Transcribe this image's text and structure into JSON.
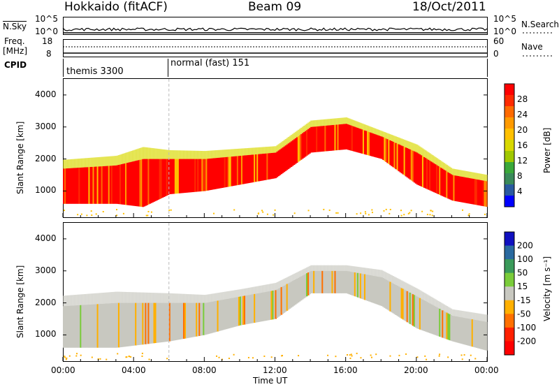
{
  "header": {
    "radar": "Hokkaido (fitACF)",
    "beam": "Beam 09",
    "date": "18/Oct/2011"
  },
  "nsky_panel": {
    "left_label": "N.Sky",
    "right_label": "N.Search",
    "left_ticks": [
      "10^5",
      "10^0"
    ],
    "right_ticks": [
      "10^5",
      "10^0"
    ]
  },
  "freq_panel": {
    "left_label_line1": "Freq.",
    "left_label_line2": "[MHz]",
    "right_label": "Nave",
    "left_ticks": [
      "18",
      "8"
    ],
    "right_ticks": [
      "60",
      "0"
    ]
  },
  "cpid_panel": {
    "label": "CPID",
    "segments": [
      "themis 3300",
      "normal (fast) 151"
    ]
  },
  "chart_data": [
    {
      "type": "heatmap",
      "name": "power",
      "ylabel": "Slant Range [km]",
      "yticks": [
        "4000",
        "3000",
        "2000",
        "1000"
      ],
      "ylim": [
        180,
        4500
      ],
      "colorbar": {
        "label": "Power [dB]",
        "ticks": [
          "28",
          "24",
          "20",
          "16",
          "12",
          "8",
          "4"
        ],
        "colors": [
          "#ff0000",
          "#ff2a00",
          "#ff6a00",
          "#ff9a00",
          "#ffc000",
          "#d8d800",
          "#a0c800",
          "#3aa83a",
          "#3a8a5a",
          "#2a5aa0",
          "#0000ff"
        ],
        "range": [
          0,
          30
        ]
      },
      "band": [
        {
          "t": 0,
          "lo": 600,
          "hi": 1700
        },
        {
          "t": 3,
          "lo": 600,
          "hi": 1800
        },
        {
          "t": 4.5,
          "lo": 500,
          "hi": 2000
        },
        {
          "t": 6,
          "lo": 900,
          "hi": 2000
        },
        {
          "t": 8,
          "lo": 1000,
          "hi": 2000
        },
        {
          "t": 10,
          "lo": 1200,
          "hi": 2100
        },
        {
          "t": 12,
          "lo": 1400,
          "hi": 2200
        },
        {
          "t": 14,
          "lo": 2200,
          "hi": 3000
        },
        {
          "t": 16,
          "lo": 2300,
          "hi": 3100
        },
        {
          "t": 18,
          "lo": 2000,
          "hi": 2700
        },
        {
          "t": 20,
          "lo": 1200,
          "hi": 2200
        },
        {
          "t": 22,
          "lo": 700,
          "hi": 1500
        },
        {
          "t": 24,
          "lo": 500,
          "hi": 1300
        }
      ]
    },
    {
      "type": "heatmap",
      "name": "velocity",
      "ylabel": "Slant Range [km]",
      "yticks": [
        "4000",
        "3000",
        "2000",
        "1000"
      ],
      "ylim": [
        180,
        4500
      ],
      "colorbar": {
        "label": "Velocity [m s⁻¹]",
        "ticks": [
          "200",
          "100",
          "50",
          "15",
          "-15",
          "-50",
          "-100",
          "-200"
        ],
        "colors": [
          "#1010c0",
          "#2a6aa0",
          "#3a9a5a",
          "#7acc3a",
          "#c8c8c0",
          "#ffb000",
          "#ff7000",
          "#ff2000",
          "#ff0000"
        ],
        "range": [
          -250,
          250
        ]
      },
      "band": [
        {
          "t": 0,
          "lo": 600,
          "hi": 1900
        },
        {
          "t": 3,
          "lo": 600,
          "hi": 2000
        },
        {
          "t": 6,
          "lo": 800,
          "hi": 2000
        },
        {
          "t": 8,
          "lo": 1000,
          "hi": 2000
        },
        {
          "t": 10,
          "lo": 1300,
          "hi": 2200
        },
        {
          "t": 12,
          "lo": 1500,
          "hi": 2400
        },
        {
          "t": 14,
          "lo": 2300,
          "hi": 3000
        },
        {
          "t": 16,
          "lo": 2300,
          "hi": 3000
        },
        {
          "t": 18,
          "lo": 1900,
          "hi": 2800
        },
        {
          "t": 20,
          "lo": 1200,
          "hi": 2200
        },
        {
          "t": 22,
          "lo": 800,
          "hi": 1600
        },
        {
          "t": 24,
          "lo": 500,
          "hi": 1400
        }
      ]
    }
  ],
  "x_axis": {
    "ticks": [
      "00:00",
      "04:00",
      "08:00",
      "12:00",
      "16:00",
      "20:00",
      "00:00"
    ],
    "label": "Time UT",
    "xlim": [
      0,
      24
    ]
  }
}
